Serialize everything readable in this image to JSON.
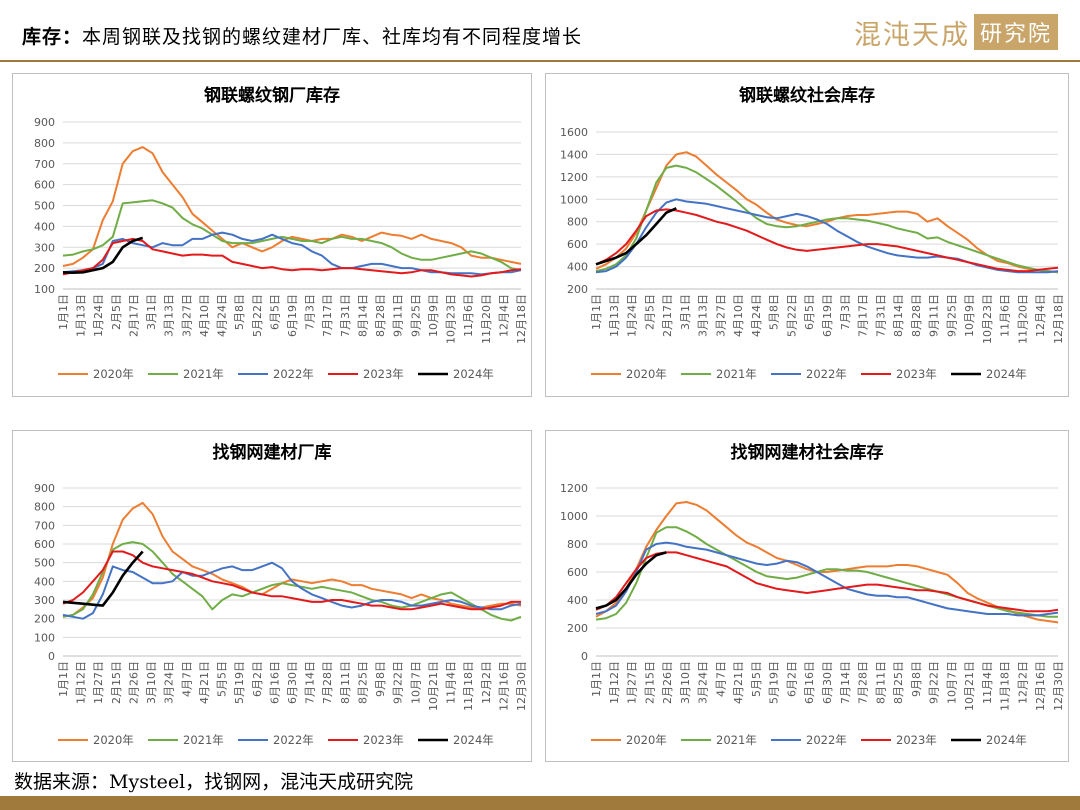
{
  "header": {
    "title_key": "库存：",
    "title_rest": "本周钢联及找钢的螺纹建材厂库、社库均有不同程度增长",
    "brand_text": "混沌天成",
    "brand_box": "研究院"
  },
  "footer": {
    "source": "数据来源：Mysteel，找钢网，混沌天成研究院"
  },
  "colors": {
    "2020年": "#ed7d31",
    "2021年": "#70ad47",
    "2022年": "#4472c4",
    "2023年": "#e31a1c",
    "2024年": "#000000",
    "accent": "#a07a3c"
  },
  "chart_data": [
    {
      "type": "line",
      "title": "钢联螺纹钢厂库存",
      "ylim": [
        100,
        900
      ],
      "yticks": [
        100,
        200,
        300,
        400,
        500,
        600,
        700,
        800,
        900
      ],
      "x_ticks": [
        "1月1日",
        "1月13日",
        "1月24日",
        "2月5日",
        "2月17日",
        "3月1日",
        "3月13日",
        "3月27日",
        "4月10日",
        "4月24日",
        "5月8日",
        "5月22日",
        "6月5日",
        "6月19日",
        "7月3日",
        "7月17日",
        "7月31日",
        "8月14日",
        "8月28日",
        "9月11日",
        "9月25日",
        "10月9日",
        "10月23日",
        "11月6日",
        "11月20日",
        "12月4日",
        "12月18日"
      ],
      "grid": true,
      "legend_position": "bottom",
      "series": [
        {
          "name": "2020年",
          "color": "#ed7d31",
          "values": [
            210,
            220,
            250,
            290,
            430,
            520,
            700,
            760,
            780,
            750,
            660,
            600,
            540,
            460,
            420,
            380,
            340,
            300,
            320,
            300,
            280,
            300,
            330,
            350,
            340,
            330,
            340,
            340,
            360,
            350,
            330,
            350,
            370,
            360,
            355,
            340,
            360,
            340,
            330,
            320,
            300,
            260,
            250,
            250,
            240,
            230,
            220
          ]
        },
        {
          "name": "2021年",
          "color": "#70ad47",
          "values": [
            260,
            265,
            280,
            290,
            310,
            350,
            510,
            515,
            520,
            525,
            510,
            490,
            440,
            410,
            390,
            360,
            330,
            320,
            320,
            320,
            330,
            340,
            350,
            340,
            330,
            330,
            320,
            340,
            350,
            340,
            340,
            330,
            320,
            300,
            270,
            250,
            240,
            240,
            250,
            260,
            270,
            280,
            270,
            250,
            230,
            200,
            190
          ]
        },
        {
          "name": "2022年",
          "color": "#4472c4",
          "values": [
            180,
            185,
            190,
            200,
            220,
            330,
            340,
            320,
            310,
            300,
            320,
            310,
            310,
            340,
            340,
            360,
            370,
            360,
            340,
            330,
            340,
            360,
            340,
            320,
            310,
            280,
            260,
            220,
            200,
            200,
            210,
            220,
            220,
            210,
            200,
            200,
            190,
            180,
            180,
            175,
            175,
            175,
            170,
            175,
            180,
            180,
            190
          ]
        },
        {
          "name": "2023年",
          "color": "#e31a1c",
          "values": [
            170,
            180,
            190,
            200,
            240,
            320,
            330,
            340,
            330,
            290,
            280,
            270,
            260,
            265,
            265,
            260,
            260,
            230,
            220,
            210,
            200,
            205,
            195,
            190,
            195,
            195,
            190,
            195,
            200,
            200,
            195,
            190,
            185,
            180,
            175,
            180,
            190,
            190,
            180,
            170,
            165,
            160,
            165,
            175,
            180,
            190,
            195
          ]
        },
        {
          "name": "2024年",
          "color": "#000000",
          "values": [
            180,
            178,
            180,
            190,
            200,
            230,
            300,
            330,
            345
          ]
        }
      ]
    },
    {
      "type": "line",
      "title": "钢联螺纹社会库存",
      "ylim": [
        200,
        1600
      ],
      "yticks": [
        200,
        400,
        600,
        800,
        1000,
        1200,
        1400,
        1600
      ],
      "x_ticks": [
        "1月1日",
        "1月13日",
        "1月24日",
        "2月5日",
        "2月17日",
        "3月1日",
        "3月13日",
        "3月27日",
        "4月10日",
        "4月24日",
        "5月8日",
        "5月22日",
        "6月5日",
        "6月19日",
        "7月3日",
        "7月17日",
        "7月31日",
        "8月14日",
        "8月28日",
        "9月11日",
        "9月25日",
        "10月9日",
        "10月23日",
        "11月6日",
        "11月20日",
        "12月4日",
        "12月18日"
      ],
      "grid": true,
      "legend_position": "bottom",
      "series": [
        {
          "name": "2020年",
          "color": "#ed7d31",
          "values": [
            380,
            420,
            480,
            560,
            700,
            900,
            1100,
            1300,
            1400,
            1420,
            1380,
            1300,
            1220,
            1150,
            1080,
            1000,
            950,
            880,
            820,
            790,
            770,
            760,
            780,
            800,
            830,
            850,
            860,
            860,
            870,
            880,
            890,
            890,
            870,
            800,
            830,
            760,
            700,
            640,
            560,
            500,
            450,
            430,
            400,
            380,
            370,
            360,
            350
          ]
        },
        {
          "name": "2021年",
          "color": "#70ad47",
          "values": [
            360,
            380,
            420,
            500,
            650,
            900,
            1150,
            1280,
            1300,
            1280,
            1240,
            1180,
            1120,
            1050,
            980,
            900,
            830,
            780,
            760,
            750,
            760,
            780,
            800,
            820,
            830,
            830,
            820,
            810,
            790,
            770,
            740,
            720,
            700,
            650,
            660,
            620,
            590,
            560,
            530,
            500,
            470,
            440,
            410,
            390,
            370,
            360,
            350
          ]
        },
        {
          "name": "2022年",
          "color": "#4472c4",
          "values": [
            350,
            360,
            400,
            480,
            600,
            750,
            880,
            970,
            1000,
            980,
            970,
            960,
            940,
            920,
            900,
            880,
            860,
            840,
            830,
            850,
            870,
            850,
            820,
            780,
            720,
            670,
            620,
            580,
            550,
            520,
            500,
            490,
            480,
            480,
            490,
            480,
            470,
            440,
            410,
            390,
            370,
            360,
            350,
            350,
            350,
            350,
            360
          ]
        },
        {
          "name": "2023年",
          "color": "#e31a1c",
          "values": [
            420,
            460,
            520,
            600,
            720,
            850,
            900,
            910,
            900,
            880,
            860,
            830,
            800,
            780,
            750,
            720,
            680,
            640,
            600,
            570,
            550,
            540,
            550,
            560,
            570,
            580,
            590,
            600,
            600,
            590,
            580,
            560,
            540,
            520,
            500,
            480,
            460,
            440,
            420,
            400,
            380,
            370,
            360,
            360,
            370,
            380,
            390
          ]
        },
        {
          "name": "2024年",
          "color": "#000000",
          "values": [
            420,
            450,
            480,
            520,
            600,
            680,
            780,
            880,
            920
          ]
        }
      ]
    },
    {
      "type": "line",
      "title": "找钢网建材厂库",
      "ylim": [
        0,
        900
      ],
      "yticks": [
        0,
        100,
        200,
        300,
        400,
        500,
        600,
        700,
        800,
        900
      ],
      "x_ticks": [
        "1月1日",
        "1月12日",
        "1月27日",
        "2月15日",
        "2月26日",
        "3月10日",
        "3月24日",
        "4月7日",
        "4月21日",
        "5月5日",
        "5月19日",
        "6月2日",
        "6月16日",
        "6月30日",
        "7月14日",
        "7月28日",
        "8月11日",
        "8月25日",
        "9月8日",
        "9月22日",
        "10月7日",
        "10月21日",
        "11月4日",
        "11月18日",
        "12月2日",
        "12月16日",
        "12月30日"
      ],
      "grid": true,
      "legend_position": "bottom",
      "series": [
        {
          "name": "2020年",
          "color": "#ed7d31",
          "values": [
            210,
            220,
            260,
            310,
            420,
            600,
            730,
            790,
            820,
            760,
            640,
            560,
            520,
            480,
            460,
            440,
            410,
            390,
            370,
            340,
            330,
            360,
            390,
            410,
            400,
            390,
            400,
            410,
            400,
            380,
            380,
            360,
            350,
            340,
            330,
            310,
            330,
            310,
            300,
            280,
            270,
            260,
            260,
            270,
            280,
            280,
            270
          ]
        },
        {
          "name": "2021年",
          "color": "#70ad47",
          "values": [
            210,
            220,
            250,
            330,
            450,
            570,
            600,
            610,
            600,
            560,
            500,
            440,
            400,
            360,
            320,
            250,
            300,
            330,
            320,
            340,
            360,
            380,
            390,
            380,
            370,
            360,
            370,
            360,
            350,
            340,
            320,
            300,
            290,
            270,
            260,
            270,
            290,
            310,
            330,
            340,
            310,
            280,
            250,
            220,
            200,
            190,
            210
          ]
        },
        {
          "name": "2022年",
          "color": "#4472c4",
          "values": [
            220,
            210,
            200,
            230,
            330,
            480,
            460,
            450,
            420,
            390,
            390,
            400,
            450,
            430,
            430,
            450,
            470,
            480,
            460,
            460,
            480,
            500,
            470,
            400,
            360,
            330,
            310,
            290,
            270,
            260,
            270,
            290,
            300,
            300,
            290,
            270,
            270,
            280,
            290,
            300,
            290,
            270,
            260,
            250,
            250,
            270,
            280
          ]
        },
        {
          "name": "2023年",
          "color": "#e31a1c",
          "values": [
            280,
            300,
            340,
            400,
            460,
            560,
            560,
            540,
            500,
            480,
            470,
            460,
            450,
            440,
            420,
            400,
            390,
            380,
            360,
            340,
            330,
            320,
            320,
            310,
            300,
            290,
            290,
            300,
            300,
            290,
            280,
            270,
            270,
            260,
            250,
            250,
            260,
            270,
            280,
            270,
            260,
            250,
            250,
            260,
            270,
            290,
            290
          ]
        },
        {
          "name": "2024年",
          "color": "#000000",
          "values": [
            290,
            285,
            280,
            275,
            270,
            340,
            430,
            500,
            560
          ]
        }
      ]
    },
    {
      "type": "line",
      "title": "找钢网建材社会库存",
      "ylim": [
        0,
        1200
      ],
      "yticks": [
        0,
        200,
        400,
        600,
        800,
        1000,
        1200
      ],
      "x_ticks": [
        "1月1日",
        "1月12日",
        "1月27日",
        "2月15日",
        "2月26日",
        "3月10日",
        "3月24日",
        "4月7日",
        "4月21日",
        "5月5日",
        "5月19日",
        "6月2日",
        "6月16日",
        "6月30日",
        "7月14日",
        "7月28日",
        "8月11日",
        "8月25日",
        "9月8日",
        "9月22日",
        "10月7日",
        "10月21日",
        "11月4日",
        "11月18日",
        "12月2日",
        "12月16日",
        "12月30日"
      ],
      "grid": true,
      "legend_position": "bottom",
      "series": [
        {
          "name": "2020年",
          "color": "#ed7d31",
          "values": [
            280,
            320,
            380,
            480,
            620,
            780,
            900,
            1000,
            1090,
            1100,
            1080,
            1040,
            980,
            920,
            860,
            810,
            780,
            740,
            700,
            680,
            650,
            620,
            600,
            600,
            610,
            620,
            630,
            640,
            640,
            640,
            650,
            650,
            640,
            620,
            600,
            580,
            520,
            450,
            410,
            380,
            350,
            330,
            300,
            280,
            260,
            250,
            240
          ]
        },
        {
          "name": "2021年",
          "color": "#70ad47",
          "values": [
            260,
            270,
            300,
            380,
            520,
            700,
            880,
            920,
            920,
            890,
            850,
            800,
            760,
            720,
            680,
            640,
            600,
            570,
            560,
            550,
            560,
            580,
            600,
            620,
            620,
            610,
            610,
            600,
            580,
            560,
            540,
            520,
            500,
            480,
            460,
            440,
            420,
            400,
            380,
            360,
            340,
            320,
            310,
            300,
            290,
            280,
            280
          ]
        },
        {
          "name": "2022年",
          "color": "#4472c4",
          "values": [
            300,
            320,
            360,
            460,
            600,
            760,
            800,
            810,
            800,
            780,
            770,
            760,
            740,
            720,
            700,
            680,
            660,
            650,
            660,
            680,
            670,
            640,
            600,
            560,
            520,
            480,
            460,
            440,
            430,
            430,
            420,
            420,
            400,
            380,
            360,
            340,
            330,
            320,
            310,
            300,
            300,
            300,
            290,
            290,
            290,
            300,
            310
          ]
        },
        {
          "name": "2023年",
          "color": "#e31a1c",
          "values": [
            330,
            360,
            420,
            520,
            620,
            700,
            730,
            740,
            740,
            720,
            700,
            680,
            660,
            640,
            600,
            560,
            520,
            500,
            480,
            470,
            460,
            450,
            460,
            470,
            480,
            490,
            500,
            510,
            510,
            500,
            490,
            480,
            470,
            470,
            460,
            450,
            420,
            400,
            380,
            360,
            350,
            340,
            330,
            320,
            320,
            320,
            330
          ]
        },
        {
          "name": "2024年",
          "color": "#000000",
          "values": [
            340,
            360,
            400,
            480,
            580,
            660,
            720,
            740
          ]
        }
      ]
    }
  ]
}
